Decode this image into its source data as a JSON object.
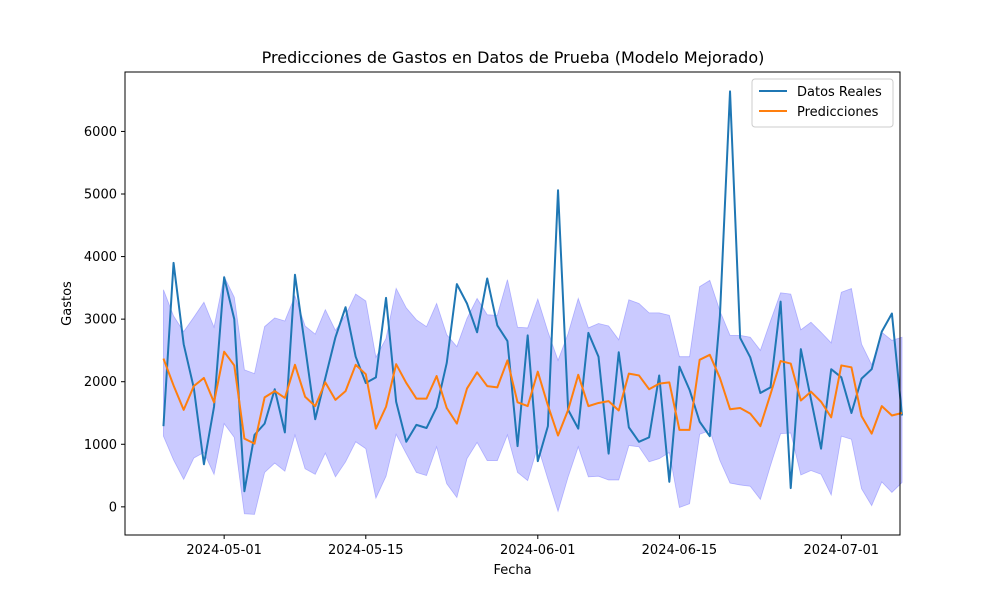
{
  "colors": {
    "real": "#1f77b4",
    "pred": "#ff7f0e",
    "band": "#7b7bff"
  },
  "chart_data": {
    "type": "line",
    "title": "Predicciones de Gastos en Datos de Prueba (Modelo Mejorado)",
    "xlabel": "Fecha",
    "ylabel": "Gastos",
    "x_start": "2024-04-25",
    "x_step_days": 1,
    "xlim_days": [
      -3.8,
      72.8
    ],
    "ylim": [
      -450,
      6950
    ],
    "x_ticks": [
      {
        "day": 6,
        "label": "2024-05-01"
      },
      {
        "day": 20,
        "label": "2024-05-15"
      },
      {
        "day": 37,
        "label": "2024-06-01"
      },
      {
        "day": 51,
        "label": "2024-06-15"
      },
      {
        "day": 67,
        "label": "2024-07-01"
      }
    ],
    "y_ticks": [
      {
        "value": 0,
        "label": "0"
      },
      {
        "value": 1000,
        "label": "1000"
      },
      {
        "value": 2000,
        "label": "2000"
      },
      {
        "value": 3000,
        "label": "3000"
      },
      {
        "value": 4000,
        "label": "4000"
      },
      {
        "value": 5000,
        "label": "5000"
      },
      {
        "value": 6000,
        "label": "6000"
      }
    ],
    "legend_position": "top-right",
    "series": [
      {
        "name": "Datos Reales",
        "values": [
          1290,
          3900,
          2600,
          1900,
          680,
          1600,
          3670,
          3000,
          250,
          1150,
          1330,
          1880,
          1190,
          3710,
          2560,
          1400,
          2060,
          2710,
          3190,
          2400,
          1980,
          2070,
          3340,
          1680,
          1040,
          1310,
          1260,
          1590,
          2300,
          3560,
          3250,
          2790,
          3650,
          2900,
          2650,
          970,
          2740,
          730,
          1290,
          5060,
          1550,
          1250,
          2780,
          2400,
          850,
          2470,
          1270,
          1040,
          1110,
          2100,
          400,
          2240,
          1870,
          1360,
          1130,
          3050,
          6640,
          2700,
          2390,
          1820,
          1910,
          3280,
          300,
          2520,
          1720,
          930,
          2200,
          2070,
          1500,
          2050,
          2200,
          2800,
          3090,
          1460
        ]
      },
      {
        "name": "Predicciones",
        "values": [
          2370,
          1940,
          1550,
          1930,
          2060,
          1670,
          2480,
          2260,
          1090,
          1010,
          1750,
          1850,
          1740,
          2270,
          1760,
          1610,
          1990,
          1710,
          1850,
          2270,
          2120,
          1250,
          1600,
          2280,
          1980,
          1730,
          1730,
          2090,
          1580,
          1330,
          1890,
          2150,
          1930,
          1910,
          2340,
          1670,
          1610,
          2160,
          1620,
          1140,
          1550,
          2110,
          1610,
          1660,
          1690,
          1540,
          2130,
          2100,
          1880,
          1970,
          1990,
          1230,
          1230,
          2350,
          2430,
          2060,
          1560,
          1580,
          1490,
          1290,
          1800,
          2330,
          2290,
          1700,
          1840,
          1680,
          1430,
          2260,
          2230,
          1450,
          1170,
          1610,
          1460,
          1500
        ]
      },
      {
        "name": "band_upper",
        "values": [
          3470,
          3050,
          2800,
          3030,
          3270,
          2870,
          3680,
          3350,
          2190,
          2130,
          2880,
          3020,
          2970,
          3370,
          2890,
          2760,
          3150,
          2820,
          3060,
          3400,
          3290,
          2390,
          2690,
          3490,
          3180,
          2990,
          2880,
          3250,
          2750,
          2560,
          3010,
          3330,
          3070,
          3060,
          3630,
          2870,
          2860,
          3320,
          2800,
          2340,
          2770,
          3330,
          2860,
          2930,
          2890,
          2670,
          3310,
          3250,
          3100,
          3100,
          3060,
          2400,
          2400,
          3520,
          3620,
          3130,
          2740,
          2740,
          2710,
          2500,
          2970,
          3420,
          3400,
          2830,
          2950,
          2790,
          2620,
          3430,
          3490,
          2600,
          2270,
          2790,
          2660,
          2710
        ]
      },
      {
        "name": "band_lower",
        "values": [
          1130,
          750,
          440,
          780,
          870,
          520,
          1330,
          1110,
          -110,
          -120,
          550,
          700,
          570,
          1150,
          610,
          520,
          860,
          480,
          720,
          1040,
          930,
          140,
          490,
          1160,
          850,
          550,
          500,
          960,
          370,
          150,
          770,
          1030,
          740,
          740,
          1150,
          550,
          420,
          970,
          440,
          -70,
          480,
          960,
          480,
          490,
          430,
          430,
          980,
          960,
          720,
          770,
          870,
          -10,
          50,
          1160,
          1220,
          740,
          380,
          350,
          330,
          120,
          660,
          1170,
          1180,
          510,
          580,
          520,
          190,
          1130,
          1080,
          290,
          20,
          400,
          230,
          390
        ]
      }
    ]
  }
}
